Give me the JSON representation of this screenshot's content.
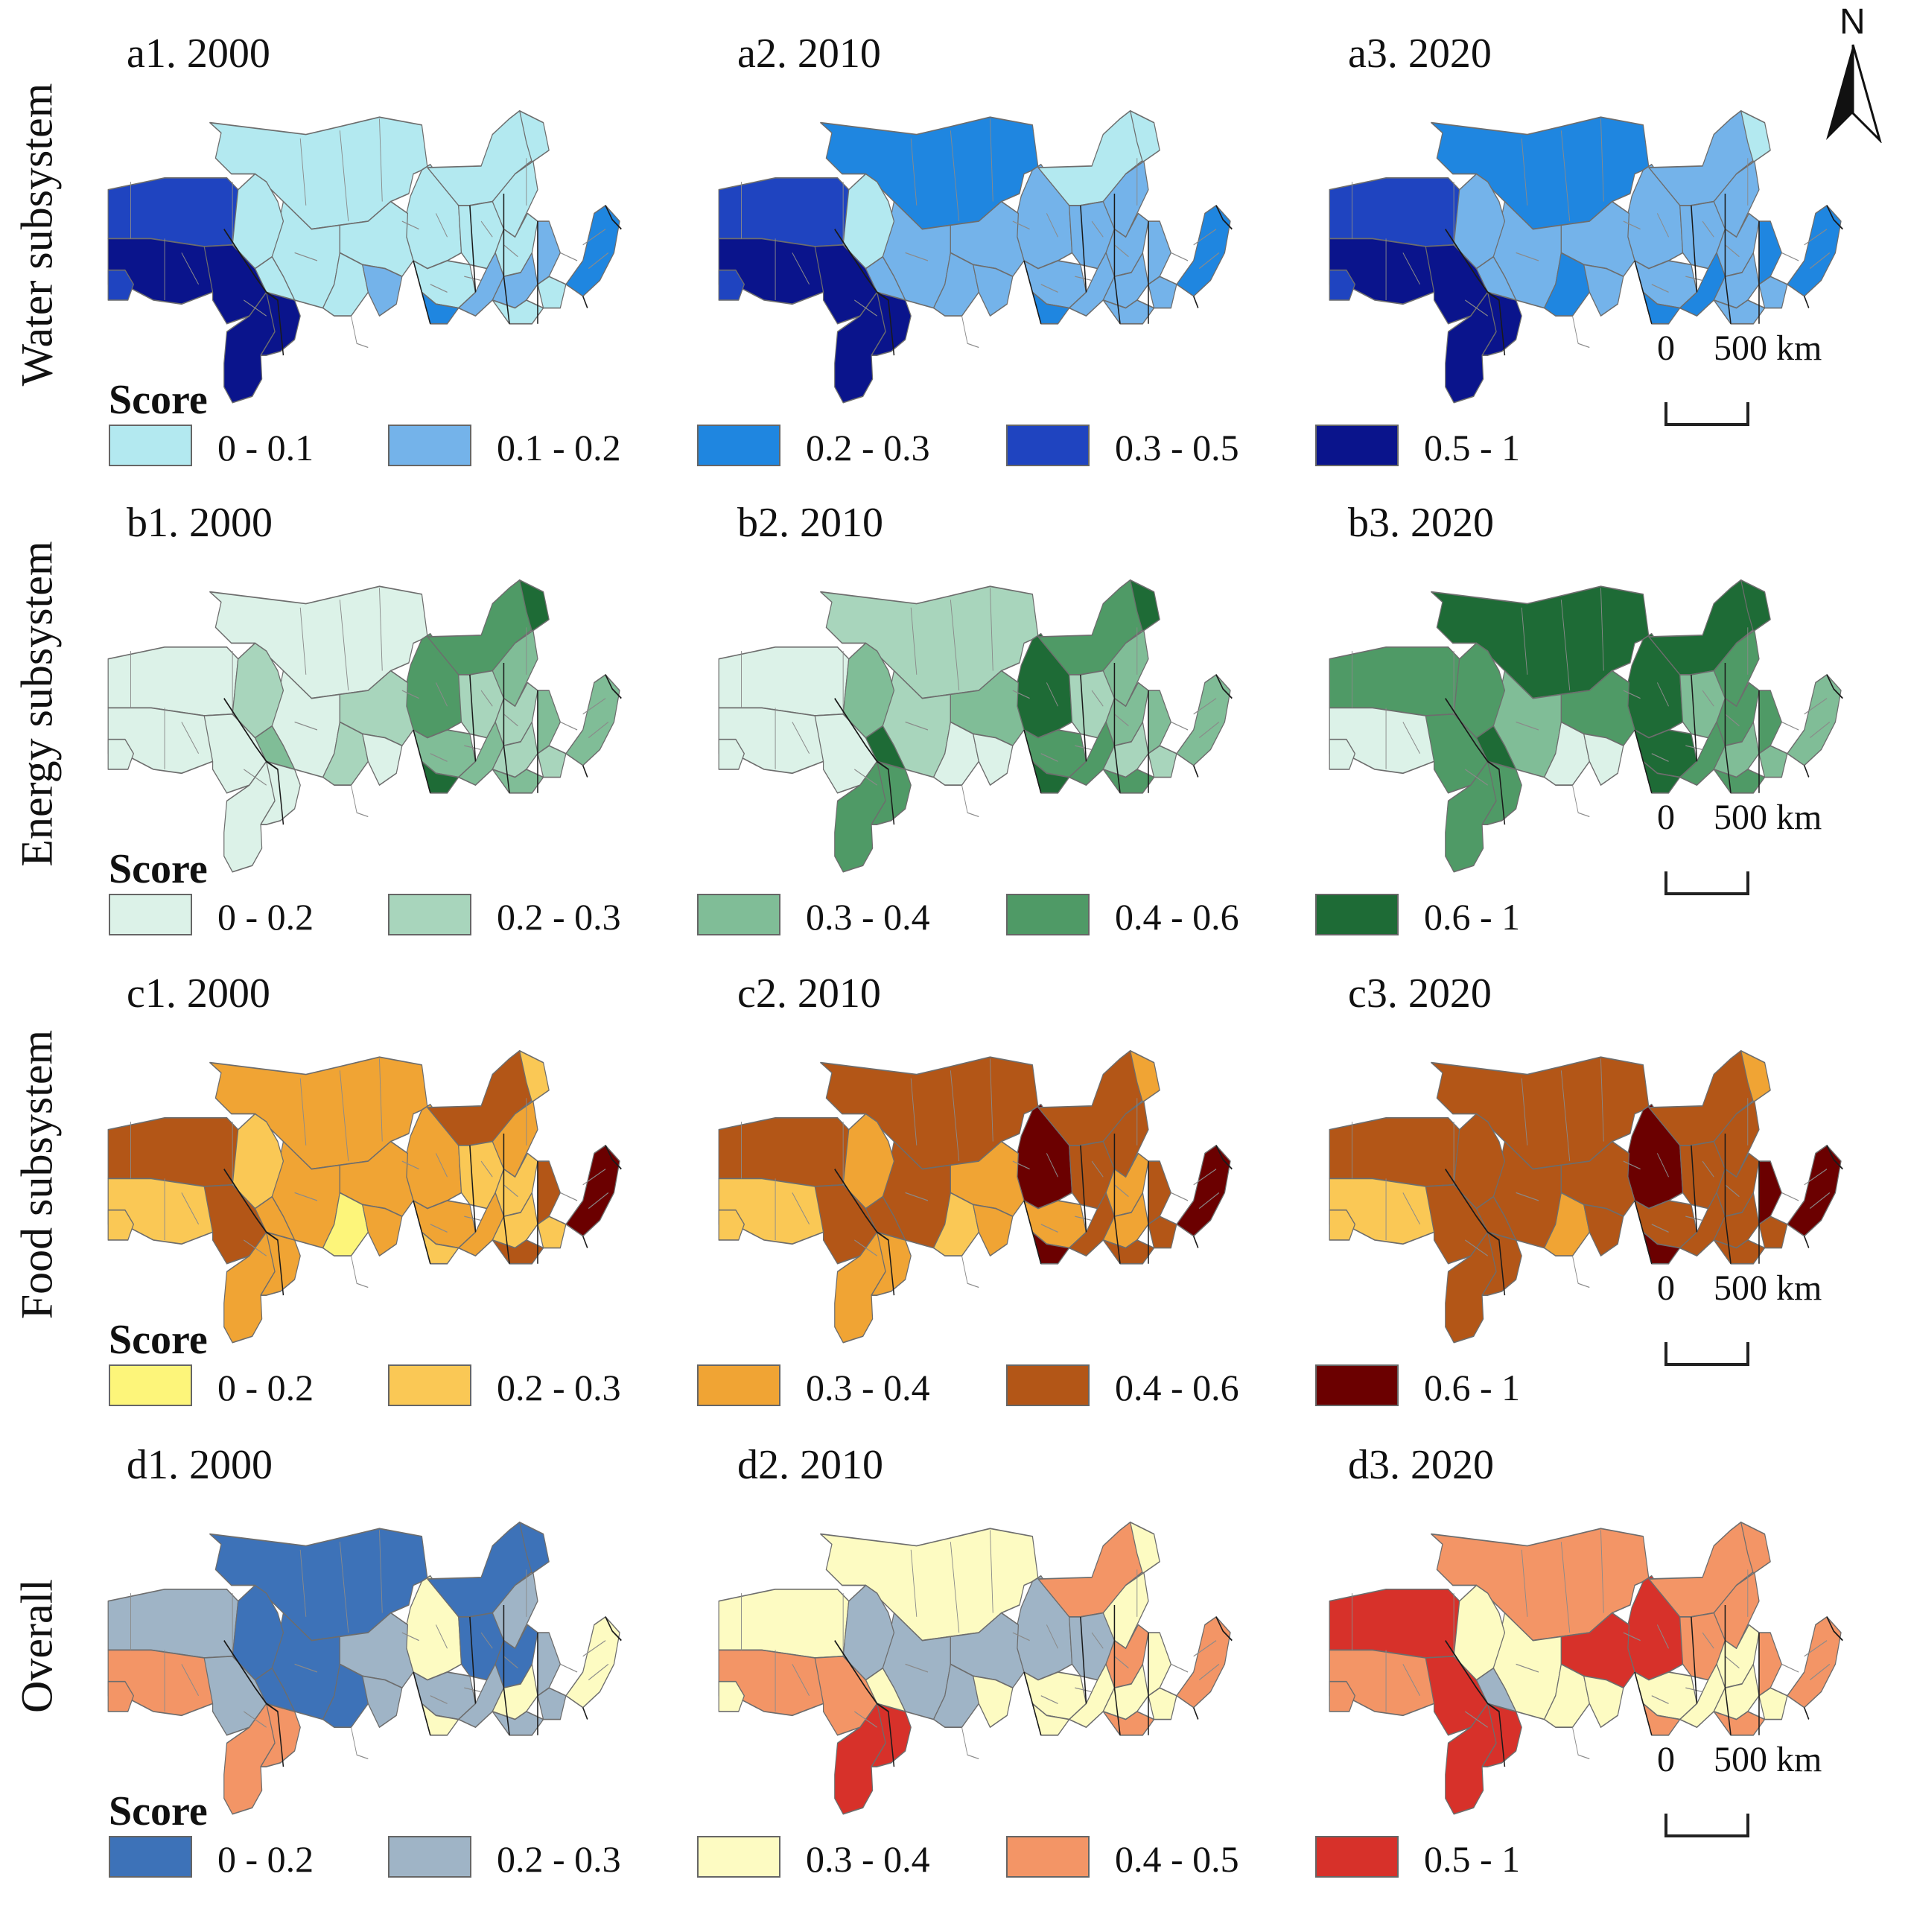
{
  "north_label": "N",
  "rows": [
    {
      "title": "Water subsystem",
      "panels": [
        "a1. 2000",
        "a2. 2010",
        "a3. 2020"
      ],
      "score_title": "Score",
      "legend": [
        {
          "label": "0 - 0.1",
          "color": "#b3e9f0"
        },
        {
          "label": "0.1 - 0.2",
          "color": "#74b3ea"
        },
        {
          "label": "0.2 - 0.3",
          "color": "#1f86e0"
        },
        {
          "label": "0.3 - 0.5",
          "color": "#1f44c0"
        },
        {
          "label": "0.5 - 1",
          "color": "#0a148c"
        }
      ],
      "scale": {
        "start": "0",
        "end": "500 km"
      },
      "maps": [
        [
          0,
          0,
          0,
          0,
          0,
          0,
          0,
          0,
          0,
          0,
          3,
          4,
          4,
          3,
          4,
          4,
          0,
          0,
          0,
          1,
          2,
          1,
          1,
          0,
          0,
          2,
          1
        ],
        [
          2,
          1,
          0,
          0,
          1,
          1,
          1,
          1,
          1,
          1,
          3,
          4,
          4,
          3,
          4,
          4,
          0,
          1,
          1,
          1,
          2,
          1,
          1,
          1,
          1,
          2,
          1
        ],
        [
          2,
          1,
          1,
          0,
          1,
          1,
          1,
          1,
          1,
          1,
          3,
          4,
          4,
          3,
          4,
          4,
          1,
          1,
          2,
          1,
          2,
          2,
          1,
          1,
          1,
          2,
          2
        ]
      ]
    },
    {
      "title": "Energy subsystem",
      "panels": [
        "b1. 2000",
        "b2. 2010",
        "b3. 2020"
      ],
      "score_title": "Score",
      "legend": [
        {
          "label": "0 - 0.2",
          "color": "#dcf2e8"
        },
        {
          "label": "0.2 - 0.3",
          "color": "#a8d5bc"
        },
        {
          "label": "0.3 - 0.4",
          "color": "#80bd97"
        },
        {
          "label": "0.4 - 0.6",
          "color": "#4f9a66"
        },
        {
          "label": "0.6 - 1",
          "color": "#1e6b36"
        }
      ],
      "scale": {
        "start": "0",
        "end": "500 km"
      },
      "maps": [
        [
          0,
          3,
          3,
          4,
          0,
          1,
          2,
          1,
          2,
          1,
          0,
          0,
          0,
          0,
          0,
          0,
          1,
          2,
          1,
          0,
          4,
          2,
          1,
          2,
          1,
          2,
          2
        ],
        [
          1,
          4,
          3,
          4,
          1,
          2,
          3,
          1,
          2,
          2,
          0,
          0,
          0,
          0,
          3,
          3,
          2,
          4,
          0,
          0,
          4,
          3,
          1,
          3,
          1,
          2,
          2
        ],
        [
          4,
          4,
          4,
          4,
          2,
          3,
          4,
          2,
          3,
          3,
          3,
          0,
          3,
          0,
          3,
          3,
          3,
          4,
          0,
          0,
          4,
          3,
          2,
          3,
          2,
          2,
          3
        ]
      ]
    },
    {
      "title": "Food subsystem",
      "panels": [
        "c1. 2000",
        "c2. 2010",
        "c3. 2020"
      ],
      "score_title": "Score",
      "legend": [
        {
          "label": "0 - 0.2",
          "color": "#fdf57a"
        },
        {
          "label": "0.2 - 0.3",
          "color": "#fac855"
        },
        {
          "label": "0.3 - 0.4",
          "color": "#f0a434"
        },
        {
          "label": "0.4 - 0.6",
          "color": "#b35617"
        },
        {
          "label": "0.6 - 1",
          "color": "#6b0000"
        }
      ],
      "scale": {
        "start": "0",
        "end": "500 km"
      },
      "maps": [
        [
          2,
          2,
          3,
          1,
          2,
          2,
          2,
          1,
          2,
          1,
          3,
          1,
          3,
          1,
          2,
          2,
          1,
          2,
          0,
          2,
          1,
          2,
          1,
          3,
          1,
          4,
          3
        ],
        [
          3,
          4,
          3,
          2,
          3,
          2,
          2,
          3,
          3,
          2,
          3,
          1,
          3,
          1,
          2,
          2,
          2,
          3,
          1,
          2,
          4,
          3,
          2,
          3,
          3,
          4,
          3
        ],
        [
          3,
          4,
          3,
          2,
          3,
          3,
          3,
          3,
          3,
          3,
          3,
          1,
          3,
          1,
          3,
          3,
          3,
          3,
          2,
          3,
          4,
          3,
          3,
          3,
          3,
          4,
          4
        ]
      ]
    },
    {
      "title": "Overall",
      "panels": [
        "d1. 2000",
        "d2. 2010",
        "d3. 2020"
      ],
      "score_title": "Score",
      "legend": [
        {
          "label": "0 - 0.2",
          "color": "#3d72b8"
        },
        {
          "label": "0.2 - 0.3",
          "color": "#9fb4c6"
        },
        {
          "label": "0.3 - 0.4",
          "color": "#fdfbc2"
        },
        {
          "label": "0.4 - 0.5",
          "color": "#f39566"
        },
        {
          "label": "0.5 - 1",
          "color": "#d7312a"
        }
      ],
      "scale": {
        "start": "0",
        "end": "500 km"
      },
      "maps": [
        [
          0,
          2,
          0,
          0,
          0,
          1,
          1,
          0,
          1,
          0,
          1,
          3,
          1,
          3,
          3,
          3,
          0,
          0,
          0,
          1,
          2,
          1,
          2,
          1,
          1,
          2,
          1
        ],
        [
          2,
          1,
          3,
          2,
          1,
          1,
          2,
          1,
          2,
          3,
          2,
          3,
          3,
          2,
          4,
          4,
          1,
          2,
          1,
          2,
          2,
          2,
          2,
          3,
          2,
          3,
          2
        ],
        [
          3,
          4,
          3,
          3,
          2,
          4,
          2,
          3,
          3,
          2,
          4,
          3,
          4,
          3,
          4,
          4,
          2,
          1,
          2,
          2,
          3,
          2,
          2,
          3,
          2,
          3,
          3
        ]
      ]
    }
  ]
}
